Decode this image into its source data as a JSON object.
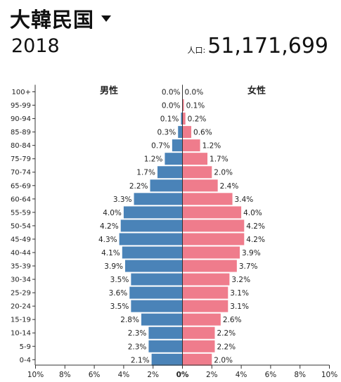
{
  "header": {
    "country": "大韓民国",
    "year": "2018",
    "population_label": "人口:",
    "population_value": "51,171,699"
  },
  "colors": {
    "male": "#4a83b8",
    "female": "#ef7c8c"
  },
  "chart_data": {
    "type": "bar",
    "orientation": "horizontal-mirrored",
    "unit": "%",
    "categories": [
      "100+",
      "95-99",
      "90-94",
      "85-89",
      "80-84",
      "75-79",
      "70-74",
      "65-69",
      "60-64",
      "55-59",
      "50-54",
      "45-49",
      "40-44",
      "35-39",
      "30-34",
      "25-29",
      "20-24",
      "15-19",
      "10-14",
      "5-9",
      "0-4"
    ],
    "series": [
      {
        "name": "男性",
        "side": "left",
        "values": [
          0.0,
          0.0,
          0.1,
          0.3,
          0.7,
          1.2,
          1.7,
          2.2,
          3.3,
          4.0,
          4.2,
          4.3,
          4.1,
          3.9,
          3.5,
          3.6,
          3.5,
          2.8,
          2.3,
          2.3,
          2.1
        ]
      },
      {
        "name": "女性",
        "side": "right",
        "values": [
          0.0,
          0.1,
          0.2,
          0.6,
          1.2,
          1.7,
          2.0,
          2.4,
          3.4,
          4.0,
          4.2,
          4.2,
          3.9,
          3.7,
          3.2,
          3.1,
          3.1,
          2.6,
          2.2,
          2.2,
          2.0
        ]
      }
    ],
    "xlim": [
      0,
      10
    ],
    "xticks": [
      "10%",
      "8%",
      "6%",
      "4%",
      "2%",
      "0%",
      "2%",
      "4%",
      "6%",
      "8%",
      "10%"
    ],
    "title": "",
    "xlabel": "",
    "ylabel": ""
  }
}
